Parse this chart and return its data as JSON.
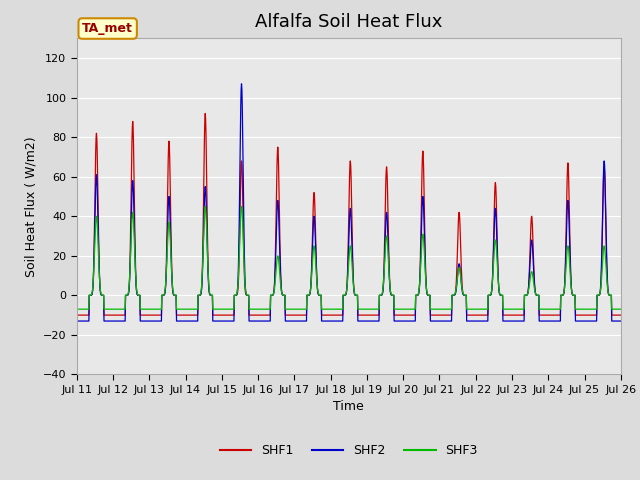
{
  "title": "Alfalfa Soil Heat Flux",
  "xlabel": "Time",
  "ylabel": "Soil Heat Flux ( W/m2)",
  "ylim": [
    -40,
    130
  ],
  "xlim": [
    0,
    360
  ],
  "background_color": "#dcdcdc",
  "plot_bg_color": "#e8e8e8",
  "line_colors": {
    "SHF1": "#cc0000",
    "SHF2": "#0000cc",
    "SHF3": "#00bb00"
  },
  "legend_label": "TA_met",
  "x_tick_labels": [
    "Jul 11",
    "Jul 12",
    "Jul 13",
    "Jul 14",
    "Jul 15",
    "Jul 16",
    "Jul 17",
    "Jul 18",
    "Jul 19",
    "Jul 20",
    "Jul 21",
    "Jul 22",
    "Jul 23",
    "Jul 24",
    "Jul 25",
    "Jul 26"
  ],
  "x_tick_positions": [
    0,
    24,
    48,
    72,
    96,
    120,
    144,
    168,
    192,
    216,
    240,
    264,
    288,
    312,
    336,
    360
  ],
  "yticks": [
    -40,
    -20,
    0,
    20,
    40,
    60,
    80,
    100,
    120
  ],
  "title_fontsize": 13,
  "axis_fontsize": 9,
  "tick_fontsize": 8,
  "legend_fontsize": 9,
  "peaks_shf1": [
    82,
    88,
    78,
    92,
    68,
    75,
    52,
    68,
    65,
    73,
    42,
    57,
    40,
    67,
    65
  ],
  "peaks_shf2": [
    61,
    58,
    50,
    55,
    107,
    48,
    40,
    44,
    42,
    50,
    16,
    44,
    28,
    48,
    68
  ],
  "peaks_shf3": [
    40,
    42,
    37,
    45,
    45,
    20,
    25,
    25,
    30,
    31,
    14,
    28,
    12,
    25,
    25
  ],
  "night_shf1": -10,
  "night_shf2": -13,
  "night_shf3": -7,
  "sharpness_shf1": 5.0,
  "sharpness_shf2": 4.5,
  "sharpness_shf3": 3.5
}
